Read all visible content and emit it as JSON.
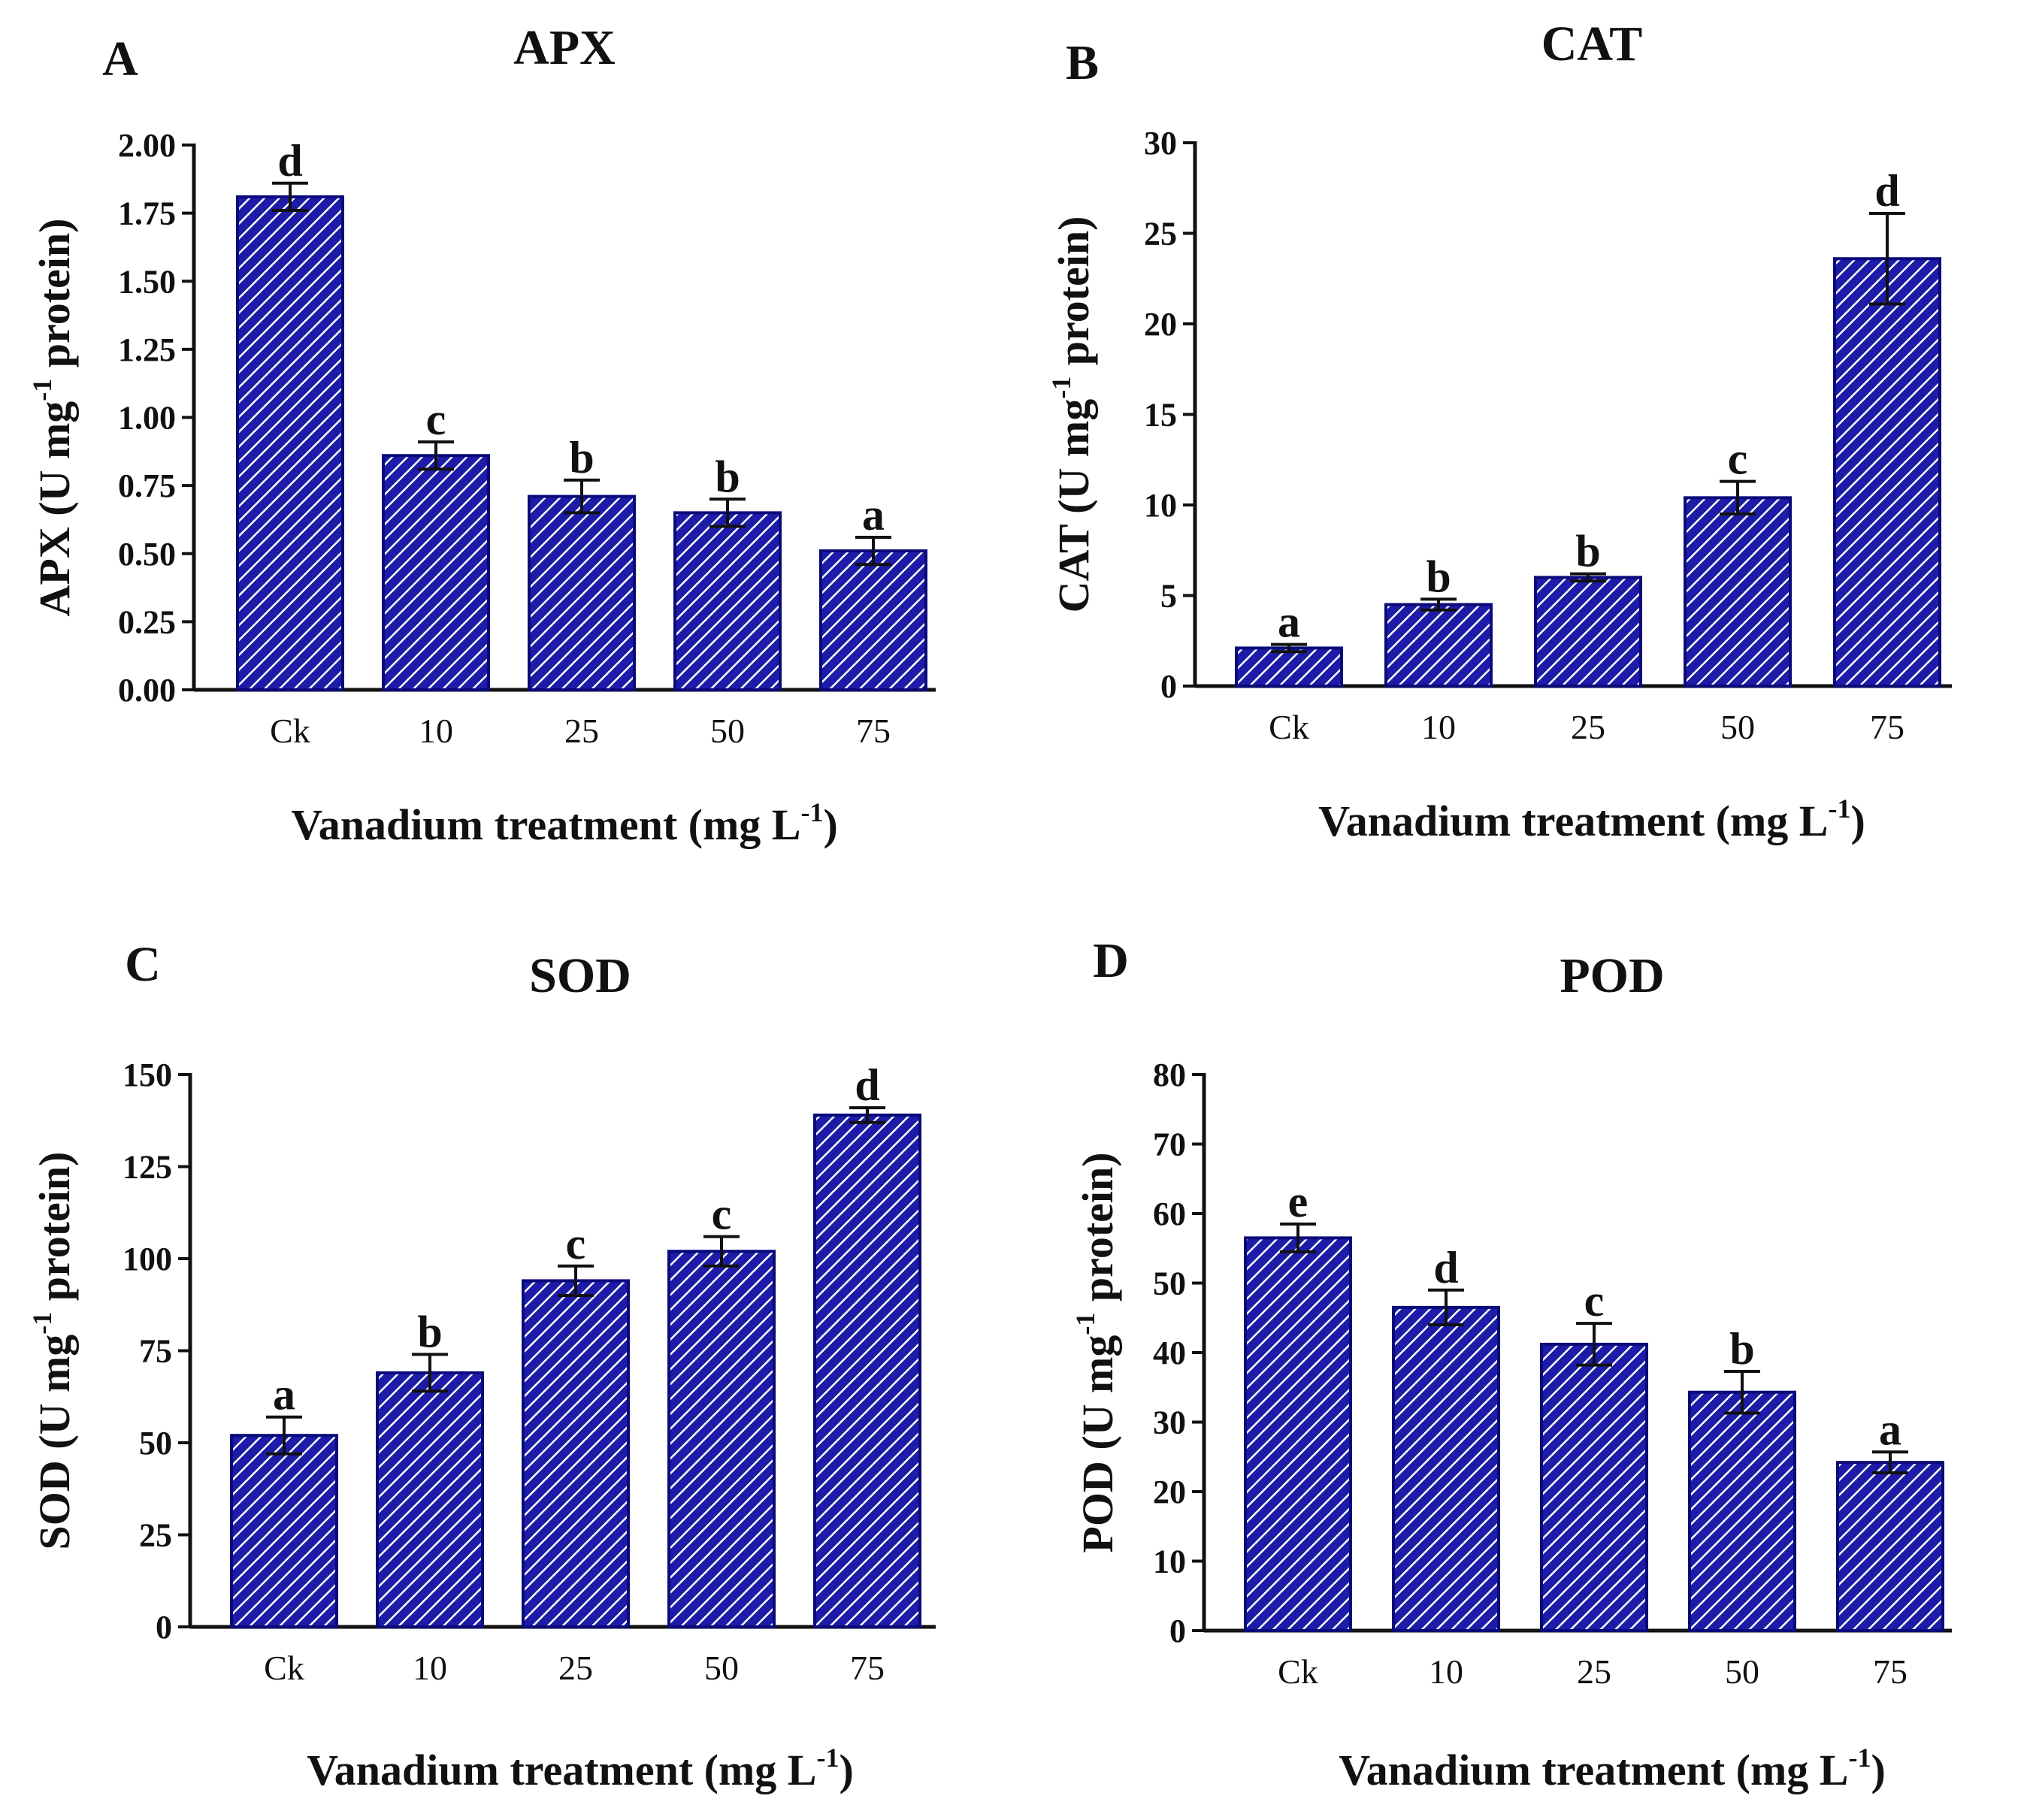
{
  "style": {
    "bar_fill": "#1c1ca8",
    "bar_stroke": "#0a0a7a",
    "hatch_color": "#ffffff",
    "axis_color": "#111111"
  },
  "chart_data": [
    {
      "panel": "A",
      "type": "bar",
      "title": "APX",
      "categories": [
        "Ck",
        "10",
        "25",
        "50",
        "75"
      ],
      "values": [
        1.81,
        0.86,
        0.71,
        0.65,
        0.51
      ],
      "errors": [
        0.05,
        0.05,
        0.06,
        0.05,
        0.05
      ],
      "labels": [
        "d",
        "c",
        "b",
        "b",
        "a"
      ],
      "ylim": [
        0,
        2.0
      ],
      "yticks": [
        "0.00",
        "0.25",
        "0.50",
        "0.75",
        "1.00",
        "1.25",
        "1.50",
        "1.75",
        "2.00"
      ],
      "ylabel": {
        "pre": "APX (U mg",
        "sup": "-1",
        "post": " protein)"
      },
      "xlabel": {
        "pre": "Vanadium treatment (mg L",
        "sup": "-1",
        "post": ")"
      }
    },
    {
      "panel": "B",
      "type": "bar",
      "title": "CAT",
      "categories": [
        "Ck",
        "10",
        "25",
        "50",
        "75"
      ],
      "values": [
        2.1,
        4.5,
        6.0,
        10.4,
        23.6
      ],
      "errors": [
        0.2,
        0.3,
        0.2,
        0.9,
        2.5
      ],
      "labels": [
        "a",
        "b",
        "b",
        "c",
        "d"
      ],
      "ylim": [
        0,
        30
      ],
      "yticks": [
        "0",
        "5",
        "10",
        "15",
        "20",
        "25",
        "30"
      ],
      "ylabel": {
        "pre": "CAT (U mg",
        "sup": "-1",
        "post": " protein)"
      },
      "xlabel": {
        "pre": "Vanadium treatment (mg L",
        "sup": "-1",
        "post": ")"
      }
    },
    {
      "panel": "C",
      "type": "bar",
      "title": "SOD",
      "categories": [
        "Ck",
        "10",
        "25",
        "50",
        "75"
      ],
      "values": [
        52,
        69,
        94,
        102,
        139
      ],
      "errors": [
        5,
        5,
        4,
        4,
        2
      ],
      "labels": [
        "a",
        "b",
        "c",
        "c",
        "d"
      ],
      "ylim": [
        0,
        150
      ],
      "yticks": [
        "0",
        "25",
        "50",
        "75",
        "100",
        "125",
        "150"
      ],
      "ylabel": {
        "pre": "SOD (U mg",
        "sup": "-1",
        "post": " protein)"
      },
      "xlabel": {
        "pre": "Vanadium treatment (mg L",
        "sup": "-1",
        "post": ")"
      }
    },
    {
      "panel": "D",
      "type": "bar",
      "title": "POD",
      "categories": [
        "Ck",
        "10",
        "25",
        "50",
        "75"
      ],
      "values": [
        56.5,
        46.5,
        41.2,
        34.3,
        24.2
      ],
      "errors": [
        2.0,
        2.5,
        3.0,
        3.0,
        1.5
      ],
      "labels": [
        "e",
        "d",
        "c",
        "b",
        "a"
      ],
      "ylim": [
        0,
        80
      ],
      "yticks": [
        "0",
        "10",
        "20",
        "30",
        "40",
        "50",
        "60",
        "70",
        "80"
      ],
      "ylabel": {
        "pre": "POD (U mg",
        "sup": "-1",
        "post": " protein)"
      },
      "xlabel": {
        "pre": "Vanadium treatment (mg L",
        "sup": "-1",
        "post": ")"
      }
    }
  ]
}
